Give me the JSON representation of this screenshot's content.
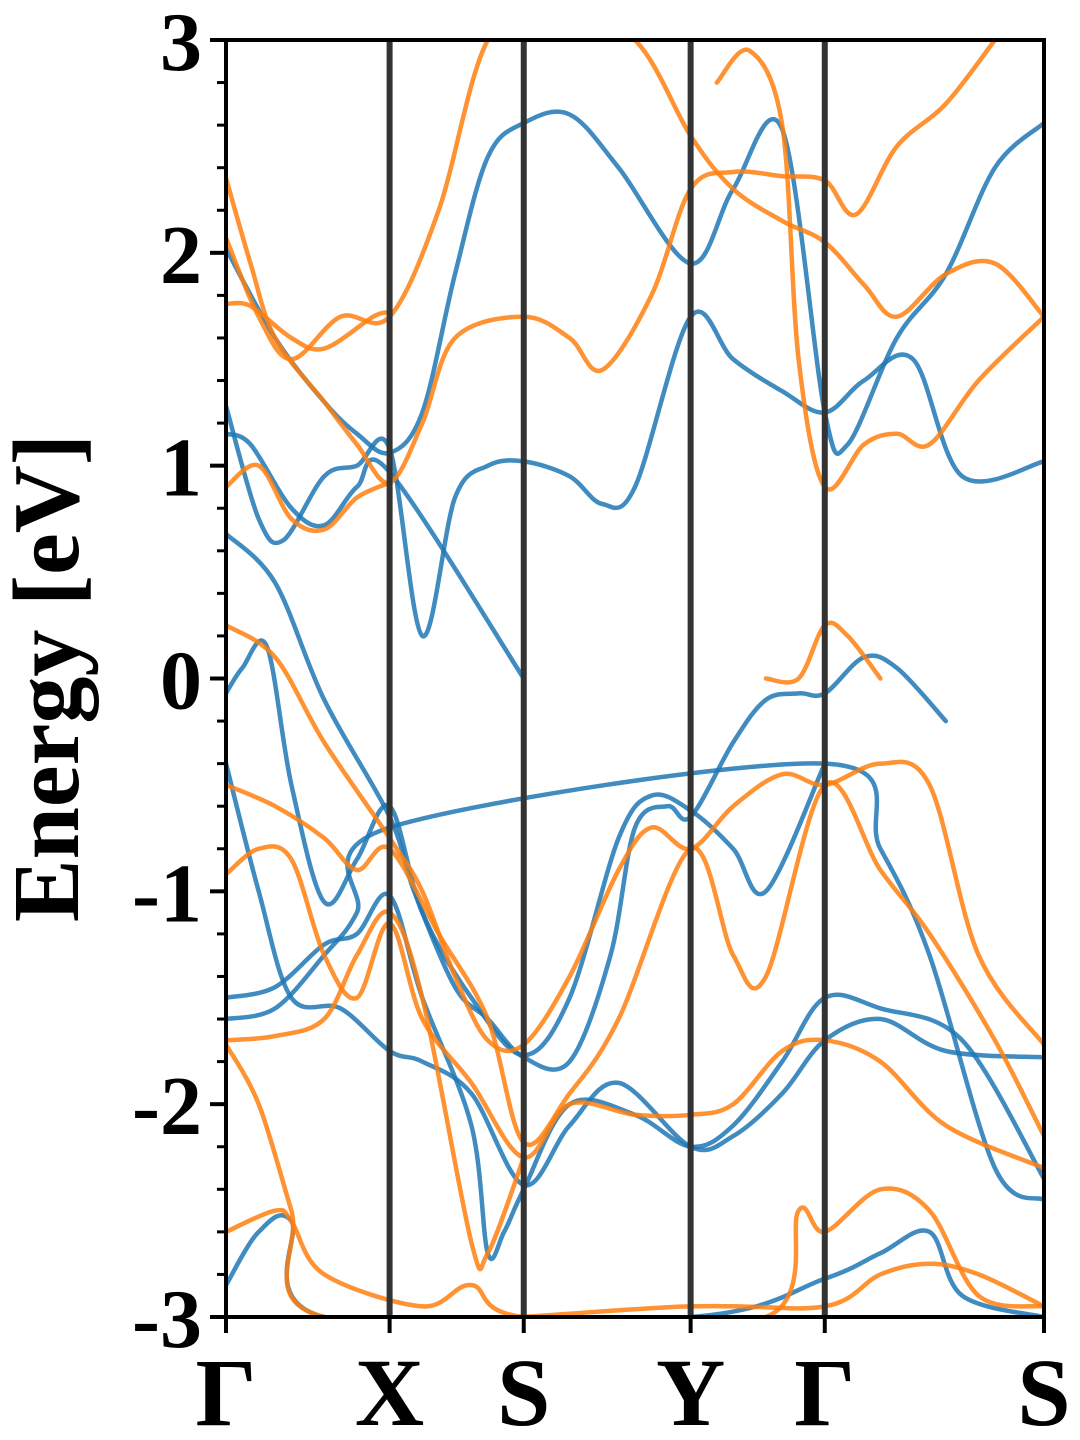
{
  "chart_data": {
    "type": "line",
    "ylabel": "Energy [eV]",
    "xlabel": "",
    "title": "",
    "ylim": [
      -3,
      3
    ],
    "yticks": [
      -3,
      -2,
      -1,
      0,
      1,
      2,
      3
    ],
    "ytick_labels": [
      "-3",
      "-2",
      "-1",
      "0",
      "1",
      "2",
      "3"
    ],
    "minor_ytick_step": 0.2,
    "x_positions": [
      0,
      1,
      1.82,
      2.84,
      3.66,
      5.0
    ],
    "xtick_labels": [
      "Γ",
      "X",
      "S",
      "Y",
      "Γ",
      "S"
    ],
    "grid": false,
    "legend": "none",
    "colors": {
      "blue": "#1f77b4",
      "orange": "#ff7f0e",
      "kpath_line": "#333333"
    },
    "series": [
      {
        "color": "blue",
        "values": [
          [
            0,
            2.02
          ],
          [
            0.3,
            1.6
          ],
          [
            0.6,
            1.3
          ],
          [
            0.8,
            1.15
          ],
          [
            1,
            1.06
          ],
          [
            1.2,
            1.25
          ],
          [
            1.4,
            1.9
          ],
          [
            1.6,
            2.45
          ],
          [
            1.82,
            2.61
          ],
          [
            2.1,
            2.65
          ],
          [
            2.4,
            2.4
          ],
          [
            2.84,
            1.95
          ],
          [
            3.1,
            2.3
          ],
          [
            3.4,
            2.58
          ],
          [
            3.66,
            1.25
          ],
          [
            3.8,
            1.1
          ],
          [
            4.1,
            1.6
          ],
          [
            4.4,
            1.9
          ],
          [
            4.7,
            2.4
          ],
          [
            5,
            2.61
          ]
        ]
      },
      {
        "color": "blue",
        "values": [
          [
            0,
            1.28
          ],
          [
            0.2,
            0.75
          ],
          [
            0.35,
            0.65
          ],
          [
            0.6,
            0.95
          ],
          [
            0.8,
            1.0
          ],
          [
            1,
            1.08
          ],
          [
            1.2,
            0.2
          ],
          [
            1.4,
            0.85
          ],
          [
            1.6,
            1.0
          ],
          [
            1.82,
            1.02
          ],
          [
            2.1,
            0.95
          ],
          [
            2.3,
            0.82
          ],
          [
            2.5,
            0.9
          ],
          [
            2.84,
            1.7
          ],
          [
            3.1,
            1.5
          ],
          [
            3.4,
            1.35
          ],
          [
            3.66,
            1.25
          ],
          [
            3.9,
            1.4
          ],
          [
            4.2,
            1.5
          ],
          [
            4.5,
            0.95
          ],
          [
            5,
            1.02
          ]
        ]
      },
      {
        "color": "blue",
        "values": [
          [
            0,
            1.15
          ],
          [
            0.15,
            1.1
          ],
          [
            0.4,
            0.8
          ],
          [
            0.6,
            0.72
          ],
          [
            0.8,
            0.9
          ],
          [
            1,
            0.97
          ],
          [
            1.82,
            0.0
          ]
        ]
      },
      {
        "color": "blue",
        "values": [
          [
            0,
            0.68
          ],
          [
            0.3,
            0.45
          ],
          [
            0.6,
            -0.1
          ],
          [
            1,
            -0.65
          ],
          [
            1.15,
            -1.0
          ],
          [
            1.4,
            -1.45
          ],
          [
            1.6,
            -1.6
          ],
          [
            1.82,
            -1.78
          ],
          [
            2.1,
            -1.8
          ],
          [
            2.35,
            -1.3
          ],
          [
            2.5,
            -0.7
          ],
          [
            2.7,
            -0.6
          ],
          [
            2.84,
            -0.65
          ],
          [
            3.1,
            -0.3
          ],
          [
            3.3,
            -0.1
          ],
          [
            3.5,
            -0.07
          ],
          [
            3.66,
            -0.07
          ],
          [
            3.9,
            0.1
          ],
          [
            4.1,
            0.05
          ],
          [
            4.4,
            -0.2
          ]
        ]
      },
      {
        "color": "blue",
        "values": [
          [
            0,
            -0.07
          ],
          [
            0.1,
            0.05
          ],
          [
            0.25,
            0.15
          ],
          [
            0.4,
            -0.5
          ],
          [
            0.6,
            -1.05
          ],
          [
            0.8,
            -0.85
          ],
          [
            1,
            -0.6
          ],
          [
            1.2,
            -1.1
          ],
          [
            1.5,
            -1.5
          ],
          [
            1.82,
            -1.77
          ],
          [
            2.1,
            -1.5
          ],
          [
            2.4,
            -0.75
          ],
          [
            2.6,
            -0.55
          ],
          [
            2.84,
            -0.62
          ],
          [
            3.1,
            -0.8
          ],
          [
            3.3,
            -1.0
          ],
          [
            3.66,
            -0.4
          ]
        ]
      },
      {
        "color": "blue",
        "values": [
          [
            0,
            -0.4
          ],
          [
            0.2,
            -1.0
          ],
          [
            0.4,
            -1.5
          ],
          [
            0.7,
            -1.55
          ],
          [
            1,
            -1.75
          ],
          [
            1.2,
            -1.8
          ],
          [
            1.5,
            -1.95
          ],
          [
            1.82,
            -2.38
          ],
          [
            2.1,
            -2.1
          ],
          [
            2.4,
            -1.9
          ],
          [
            2.84,
            -2.2
          ],
          [
            3.1,
            -2.15
          ],
          [
            3.4,
            -1.95
          ],
          [
            3.66,
            -1.7
          ],
          [
            4.0,
            -1.6
          ],
          [
            4.4,
            -1.75
          ],
          [
            5,
            -1.78
          ]
        ]
      },
      {
        "color": "blue",
        "values": [
          [
            0,
            -1.5
          ],
          [
            0.3,
            -1.45
          ],
          [
            0.6,
            -1.25
          ],
          [
            0.8,
            -1.2
          ],
          [
            1,
            -1.02
          ],
          [
            1.2,
            -1.5
          ],
          [
            1.5,
            -2.1
          ],
          [
            1.6,
            -2.7
          ],
          [
            1.7,
            -2.6
          ],
          [
            1.82,
            -2.4
          ],
          [
            2.1,
            -2.0
          ],
          [
            2.5,
            -2.05
          ],
          [
            2.84,
            -2.2
          ],
          [
            3.1,
            -2.1
          ],
          [
            3.4,
            -1.8
          ],
          [
            3.66,
            -1.5
          ],
          [
            4.0,
            -1.55
          ],
          [
            4.5,
            -1.7
          ],
          [
            5,
            -2.35
          ]
        ]
      },
      {
        "color": "blue",
        "values": [
          [
            0,
            -1.6
          ],
          [
            0.3,
            -1.55
          ],
          [
            0.6,
            -1.3
          ],
          [
            0.8,
            -1.1
          ],
          [
            1,
            -0.7
          ],
          [
            3.66,
            -0.4
          ],
          [
            4.0,
            -0.8
          ],
          [
            4.3,
            -1.3
          ],
          [
            4.7,
            -2.3
          ],
          [
            5,
            -2.45
          ]
        ]
      },
      {
        "color": "blue",
        "values": [
          [
            0,
            -2.85
          ],
          [
            0.2,
            -2.6
          ],
          [
            0.4,
            -2.55
          ],
          [
            0.6,
            -3.0
          ],
          [
            2.84,
            -3.0
          ],
          [
            3.66,
            -2.82
          ],
          [
            4.0,
            -2.7
          ],
          [
            4.3,
            -2.6
          ],
          [
            4.5,
            -2.9
          ],
          [
            5,
            -3.0
          ]
        ]
      },
      {
        "color": "orange",
        "values": [
          [
            0,
            2.35
          ],
          [
            0.15,
            1.95
          ],
          [
            0.3,
            1.6
          ],
          [
            0.6,
            1.3
          ],
          [
            0.8,
            1.1
          ],
          [
            1,
            0.92
          ],
          [
            1.2,
            1.2
          ],
          [
            1.4,
            1.6
          ],
          [
            1.82,
            1.7
          ],
          [
            2.1,
            1.6
          ],
          [
            2.3,
            1.45
          ],
          [
            2.6,
            1.8
          ],
          [
            2.84,
            2.3
          ],
          [
            3.1,
            2.38
          ],
          [
            3.4,
            2.36
          ],
          [
            3.66,
            2.34
          ],
          [
            3.85,
            2.18
          ],
          [
            4.1,
            2.5
          ],
          [
            4.4,
            2.7
          ],
          [
            4.7,
            3.0
          ]
        ]
      },
      {
        "color": "orange",
        "values": [
          [
            0,
            2.07
          ],
          [
            0.2,
            1.7
          ],
          [
            0.4,
            1.5
          ],
          [
            0.7,
            1.7
          ],
          [
            1,
            1.7
          ],
          [
            1.3,
            2.2
          ],
          [
            1.6,
            3.0
          ],
          [
            2.0,
            3.2
          ],
          [
            2.5,
            3.0
          ],
          [
            2.84,
            2.55
          ],
          [
            3.1,
            2.3
          ],
          [
            3.4,
            2.15
          ],
          [
            3.66,
            2.05
          ],
          [
            3.9,
            1.85
          ],
          [
            4.1,
            1.7
          ],
          [
            4.4,
            1.9
          ],
          [
            4.7,
            1.95
          ],
          [
            5,
            1.7
          ]
        ]
      },
      {
        "color": "orange",
        "values": [
          [
            0,
            1.76
          ],
          [
            0.15,
            1.75
          ],
          [
            0.4,
            1.6
          ],
          [
            0.6,
            1.55
          ],
          [
            0.9,
            1.7
          ],
          [
            1,
            1.72
          ]
        ]
      },
      {
        "color": "orange",
        "values": [
          [
            0,
            0.9
          ],
          [
            0.2,
            1.0
          ],
          [
            0.4,
            0.75
          ],
          [
            0.6,
            0.7
          ],
          [
            0.8,
            0.85
          ],
          [
            1,
            0.92
          ]
        ]
      },
      {
        "color": "orange",
        "values": [
          [
            3.0,
            2.8
          ],
          [
            3.2,
            2.95
          ],
          [
            3.4,
            2.6
          ],
          [
            3.5,
            1.5
          ],
          [
            3.66,
            0.9
          ],
          [
            3.9,
            1.1
          ],
          [
            4.1,
            1.15
          ],
          [
            4.3,
            1.1
          ],
          [
            4.6,
            1.4
          ],
          [
            5,
            1.7
          ]
        ]
      },
      {
        "color": "orange",
        "values": [
          [
            3.3,
            0.0
          ],
          [
            3.5,
            0.0
          ],
          [
            3.66,
            0.25
          ],
          [
            3.8,
            0.2
          ],
          [
            4.0,
            0.0
          ]
        ]
      },
      {
        "color": "orange",
        "values": [
          [
            0,
            0.25
          ],
          [
            0.3,
            0.1
          ],
          [
            0.6,
            -0.3
          ],
          [
            1,
            -0.75
          ],
          [
            1.2,
            -1.0
          ],
          [
            1.4,
            -1.4
          ],
          [
            1.6,
            -1.7
          ],
          [
            1.82,
            -1.72
          ],
          [
            2.1,
            -1.4
          ],
          [
            2.4,
            -0.9
          ],
          [
            2.6,
            -0.7
          ],
          [
            2.84,
            -0.8
          ],
          [
            3.1,
            -0.6
          ],
          [
            3.4,
            -0.45
          ],
          [
            3.66,
            -0.5
          ],
          [
            4.0,
            -0.4
          ],
          [
            4.3,
            -0.5
          ],
          [
            4.6,
            -1.3
          ],
          [
            5,
            -1.72
          ]
        ]
      },
      {
        "color": "orange",
        "values": [
          [
            0,
            -0.5
          ],
          [
            0.3,
            -0.6
          ],
          [
            0.6,
            -0.75
          ],
          [
            0.8,
            -0.9
          ],
          [
            1,
            -0.8
          ],
          [
            1.3,
            -1.2
          ],
          [
            1.6,
            -1.6
          ],
          [
            1.82,
            -2.18
          ],
          [
            2.1,
            -1.95
          ],
          [
            2.4,
            -1.6
          ],
          [
            2.84,
            -0.8
          ],
          [
            3.1,
            -1.3
          ],
          [
            3.3,
            -1.4
          ],
          [
            3.66,
            -0.5
          ],
          [
            4.0,
            -0.9
          ],
          [
            4.3,
            -1.2
          ],
          [
            4.7,
            -1.7
          ],
          [
            5,
            -2.15
          ]
        ]
      },
      {
        "color": "orange",
        "values": [
          [
            0,
            -0.92
          ],
          [
            0.2,
            -0.8
          ],
          [
            0.4,
            -0.85
          ],
          [
            0.6,
            -1.3
          ],
          [
            0.8,
            -1.5
          ],
          [
            1,
            -1.15
          ],
          [
            1.2,
            -1.6
          ],
          [
            1.5,
            -1.9
          ],
          [
            1.82,
            -2.25
          ],
          [
            2.1,
            -2.0
          ],
          [
            2.5,
            -2.05
          ],
          [
            2.84,
            -2.05
          ],
          [
            3.1,
            -2.0
          ],
          [
            3.4,
            -1.75
          ],
          [
            3.66,
            -1.7
          ],
          [
            4.0,
            -1.8
          ],
          [
            4.4,
            -2.1
          ],
          [
            5,
            -2.3
          ]
        ]
      },
      {
        "color": "orange",
        "values": [
          [
            0,
            -1.7
          ],
          [
            0.3,
            -1.68
          ],
          [
            0.6,
            -1.6
          ],
          [
            0.8,
            -1.3
          ],
          [
            1,
            -1.1
          ],
          [
            1.2,
            -1.5
          ],
          [
            1.5,
            -2.65
          ],
          [
            1.6,
            -2.7
          ],
          [
            1.82,
            -2.25
          ]
        ]
      },
      {
        "color": "orange",
        "values": [
          [
            0,
            -1.72
          ],
          [
            0.2,
            -2.0
          ],
          [
            0.4,
            -2.5
          ],
          [
            0.6,
            -3.0
          ],
          [
            2.84,
            -2.95
          ],
          [
            3.66,
            -2.95
          ],
          [
            4.0,
            -2.8
          ],
          [
            4.3,
            -2.75
          ],
          [
            4.6,
            -2.8
          ],
          [
            5,
            -2.95
          ]
        ]
      },
      {
        "color": "orange",
        "values": [
          [
            0,
            -2.6
          ],
          [
            0.3,
            -2.5
          ],
          [
            0.4,
            -2.55
          ],
          [
            0.6,
            -2.8
          ],
          [
            1.2,
            -2.95
          ],
          [
            1.5,
            -2.85
          ],
          [
            1.82,
            -3.0
          ],
          [
            3.3,
            -3.0
          ],
          [
            3.5,
            -2.5
          ],
          [
            3.66,
            -2.6
          ],
          [
            4.0,
            -2.4
          ],
          [
            4.3,
            -2.5
          ],
          [
            4.6,
            -2.9
          ],
          [
            5,
            -2.95
          ]
        ]
      }
    ]
  }
}
